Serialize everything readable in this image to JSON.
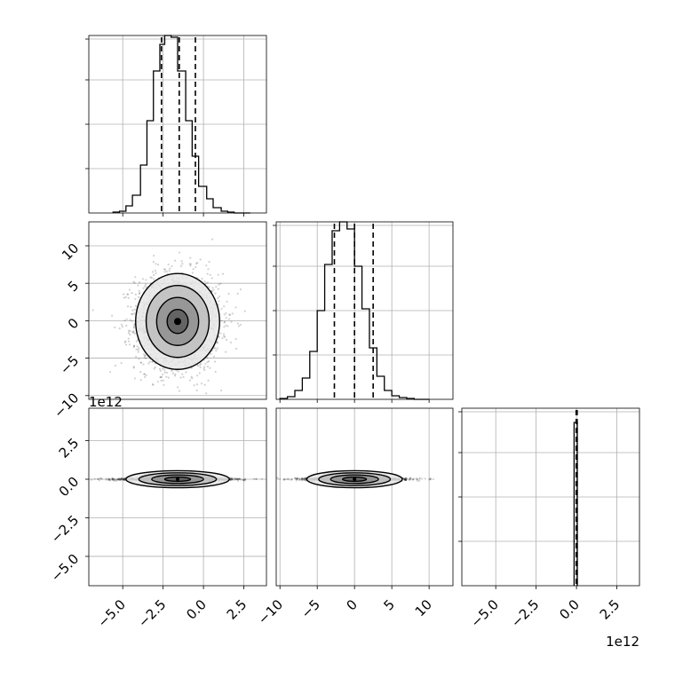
{
  "chart_data": {
    "type": "corner",
    "grid": true,
    "panels": [
      {
        "id": "hist-p0",
        "type": "histogram",
        "xlim": [
          -7.1,
          3.9
        ],
        "ylim": [
          0,
          1
        ],
        "edges": [
          -5.6,
          -5.2,
          -4.8,
          -4.4,
          -3.9,
          -3.5,
          -3.1,
          -2.7,
          -2.4,
          -2.0,
          -1.6,
          -1.1,
          -0.7,
          -0.3,
          0.2,
          0.6,
          1.1,
          1.5,
          1.9,
          2.4,
          2.9
        ],
        "counts": [
          0.005,
          0.01,
          0.04,
          0.1,
          0.27,
          0.52,
          0.8,
          0.95,
          1.0,
          0.99,
          0.8,
          0.52,
          0.32,
          0.15,
          0.08,
          0.03,
          0.01,
          0.005,
          0.0,
          0.0
        ],
        "quantiles": [
          -2.6,
          -1.5,
          -0.5
        ],
        "xticks": [
          -5.0,
          -2.5,
          0.0,
          2.5
        ]
      },
      {
        "id": "hist-p1",
        "type": "histogram",
        "xlim": [
          -10.5,
          13.2
        ],
        "ylim": [
          0,
          1
        ],
        "edges": [
          -10,
          -9,
          -8,
          -7,
          -6,
          -5,
          -4,
          -3,
          -2,
          -1,
          0,
          1,
          2,
          3,
          4,
          5,
          6,
          7,
          8,
          9,
          10
        ],
        "counts": [
          0.005,
          0.015,
          0.05,
          0.12,
          0.27,
          0.5,
          0.76,
          0.95,
          1.0,
          0.96,
          0.75,
          0.51,
          0.29,
          0.13,
          0.05,
          0.02,
          0.01,
          0.005,
          0.0,
          0.0
        ],
        "quantiles": [
          -2.7,
          0.0,
          2.5
        ],
        "xticks": [
          -10,
          -5,
          0,
          5,
          10
        ]
      },
      {
        "id": "hist-p2",
        "type": "histogram",
        "xlim": [
          -7.1,
          3.9
        ],
        "ylim": [
          0,
          1
        ],
        "offset_text": "1e12",
        "edges": [
          -0.15,
          0.05
        ],
        "counts": [
          0.92
        ],
        "quantiles": [
          -0.02,
          0.0,
          0.04
        ],
        "xticks": [
          -5.0,
          -2.5,
          0.0,
          2.5
        ],
        "xtick_labels": [
          "−5.0",
          "−2.5",
          "0.0",
          "2.5"
        ]
      },
      {
        "id": "scatter-p0-p1",
        "type": "scatter+contour",
        "x_param": 0,
        "y_param": 1,
        "xlim": [
          -7.1,
          3.9
        ],
        "ylim": [
          -10.5,
          13.2
        ],
        "center": [
          -1.6,
          -0.1
        ],
        "spread": [
          1.3,
          3.2
        ],
        "yticks": [
          -10,
          -5,
          0,
          5,
          10
        ],
        "ytick_labels": [
          "−10",
          "−5",
          "0",
          "5",
          "10"
        ]
      },
      {
        "id": "scatter-p0-p2",
        "type": "scatter+contour",
        "x_param": 0,
        "y_param": 2,
        "xlim": [
          -7.1,
          3.9
        ],
        "ylim": [
          -6.9,
          4.6
        ],
        "center": [
          -1.6,
          0.0
        ],
        "spread": [
          1.6,
          0.04
        ],
        "offset_text": "1e12",
        "xticks": [
          -5.0,
          -2.5,
          0.0,
          2.5
        ],
        "xtick_labels": [
          "−5.0",
          "−2.5",
          "0.0",
          "2.5"
        ],
        "yticks": [
          -5.0,
          -2.5,
          0.0,
          2.5
        ],
        "ytick_labels": [
          "−5.0",
          "−2.5",
          "0.0",
          "2.5"
        ]
      },
      {
        "id": "scatter-p1-p2",
        "type": "scatter+contour",
        "x_param": 1,
        "y_param": 2,
        "xlim": [
          -10.5,
          13.2
        ],
        "ylim": [
          -6.9,
          4.6
        ],
        "center": [
          0.0,
          0.0
        ],
        "spread": [
          3.2,
          0.04
        ],
        "xticks": [
          -10,
          -5,
          0,
          5,
          10
        ],
        "xtick_labels": [
          "−10",
          "−5",
          "0",
          "5",
          "10"
        ]
      }
    ]
  }
}
